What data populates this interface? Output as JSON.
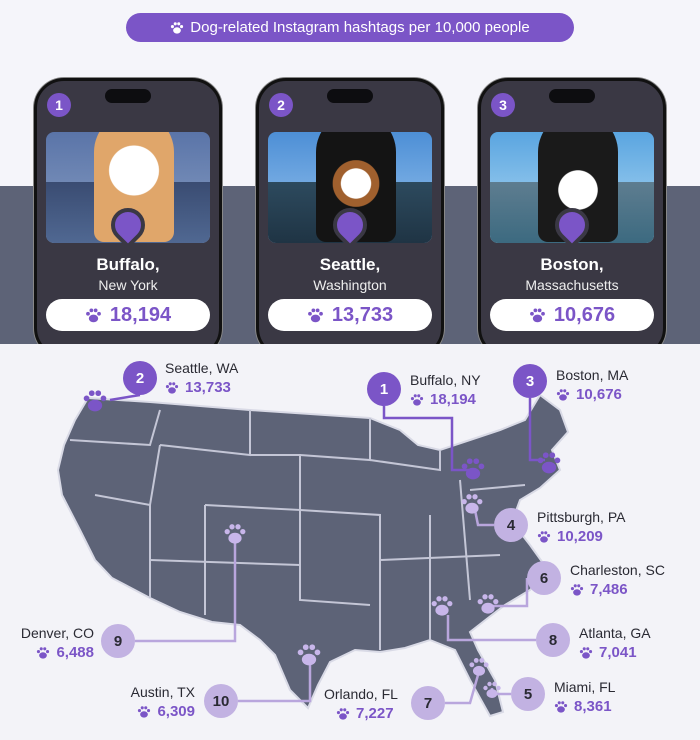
{
  "banner": {
    "text": "Dog-related Instagram hashtags per 10,000 people",
    "icon": "paw-icon"
  },
  "colors": {
    "accent": "#7b55c7",
    "light_accent": "#b9a6dd",
    "map": "#5d6377"
  },
  "phones": [
    {
      "rank": "1",
      "city": "Buffalo,",
      "state": "New York",
      "value": "18,194"
    },
    {
      "rank": "2",
      "city": "Seattle,",
      "state": "Washington",
      "value": "13,733"
    },
    {
      "rank": "3",
      "city": "Boston,",
      "state": "Massachusetts",
      "value": "10,676"
    }
  ],
  "map": [
    {
      "rank": "1",
      "label": "Buffalo, NY",
      "value": "18,194"
    },
    {
      "rank": "2",
      "label": "Seattle, WA",
      "value": "13,733"
    },
    {
      "rank": "3",
      "label": "Boston, MA",
      "value": "10,676"
    },
    {
      "rank": "4",
      "label": "Pittsburgh, PA",
      "value": "10,209"
    },
    {
      "rank": "5",
      "label": "Miami, FL",
      "value": "8,361"
    },
    {
      "rank": "6",
      "label": "Charleston, SC",
      "value": "7,486"
    },
    {
      "rank": "7",
      "label": "Orlando, FL",
      "value": "7,227"
    },
    {
      "rank": "8",
      "label": "Atlanta, GA",
      "value": "7,041"
    },
    {
      "rank": "9",
      "label": "Denver, CO",
      "value": "6,488"
    },
    {
      "rank": "10",
      "label": "Austin, TX",
      "value": "6,309"
    }
  ]
}
